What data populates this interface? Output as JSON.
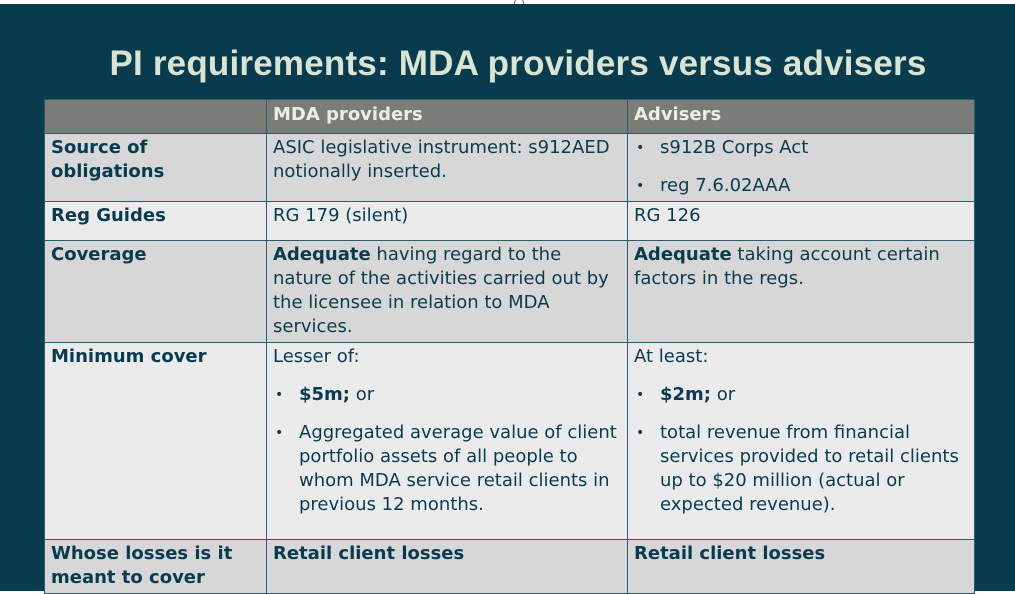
{
  "title": "PI requirements: MDA providers versus advisers",
  "table": {
    "headers": [
      "",
      "MDA providers",
      "Advisers"
    ],
    "source": {
      "label": "Source of obligations",
      "mda": "ASIC legislative instrument: s912AED notionally inserted.",
      "advisers_bullets": [
        "s912B Corps Act",
        "reg 7.6.02AAA"
      ]
    },
    "reg_guides": {
      "label": "Reg Guides",
      "mda": "RG 179 (silent)",
      "advisers": "RG 126"
    },
    "coverage": {
      "label": "Coverage",
      "mda_bold": "Adequate",
      "mda_rest": " having regard to the nature of the activities carried out by the licensee in relation to MDA services.",
      "advisers_bold": "Adequate",
      "advisers_rest": " taking account certain factors in the regs."
    },
    "minimum_cover": {
      "label": "Minimum cover",
      "mda_intro": "Lesser of:",
      "mda_b1_bold": "$5m;",
      "mda_b1_rest": " or",
      "mda_b2": "Aggregated average value of client portfolio assets of all people to whom MDA service retail clients in previous 12 months.",
      "advisers_intro": "At least:",
      "advisers_b1_bold": "$2m;",
      "advisers_b1_rest": " or",
      "advisers_b2": "total revenue from financial services provided to retail clients up to $20 million (actual or expected revenue)."
    },
    "losses": {
      "label": "Whose losses is it meant to cover",
      "mda": "Retail client losses",
      "advisers": "Retail client losses"
    }
  }
}
